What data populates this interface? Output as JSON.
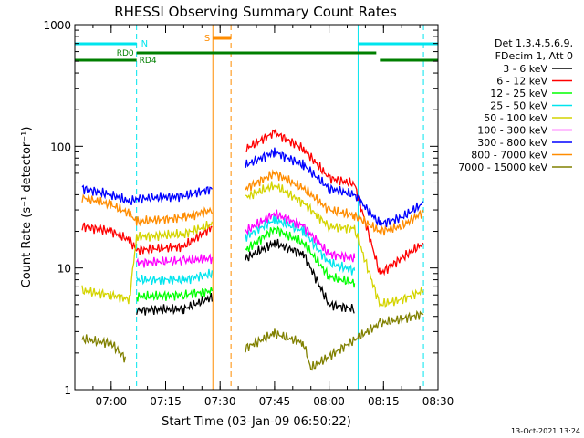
{
  "chart_data": {
    "type": "line",
    "title": "RHESSI Observing Summary Count Rates",
    "xlabel": "Start Time (03-Jan-09 06:50:22)",
    "ylabel": "Count Rate (s⁻¹ detector⁻¹)",
    "y_scale": "log",
    "ylim": [
      1,
      1000
    ],
    "xlim": [
      "06:50",
      "08:30"
    ],
    "x_ticks": [
      "07:00",
      "07:15",
      "07:30",
      "07:45",
      "08:00",
      "08:15",
      "08:30"
    ],
    "y_ticks": [
      "1",
      "10",
      "100",
      "1000"
    ],
    "legend_header": [
      "Det 1,3,4,5,6,9,",
      "FDecim 1, Att 0"
    ],
    "legend_position": "right",
    "timestamp": "13-Oct-2021 13:24",
    "annotations": {
      "night_label": "N",
      "saa_label": "S",
      "rd0_label": "RD0",
      "rd4_label": "RD4"
    },
    "bars": {
      "night": {
        "color": "#00e5ee",
        "intervals": [
          [
            "06:50",
            "07:07"
          ],
          [
            "08:08",
            "08:30"
          ]
        ]
      },
      "saa": {
        "color": "#ff8c00",
        "interval": [
          "07:28",
          "07:33"
        ]
      },
      "rd0": {
        "color": "#007f00",
        "interval": [
          "07:07",
          "08:13"
        ]
      },
      "rd4": {
        "color": "#007f00",
        "intervals": [
          [
            "06:50",
            "07:07"
          ],
          [
            "08:14",
            "08:30"
          ]
        ]
      }
    },
    "vlines": [
      {
        "time": "07:07",
        "color": "#00e5ee",
        "style": "dashed"
      },
      {
        "time": "07:28",
        "color": "#ff8c00",
        "style": "solid"
      },
      {
        "time": "07:33",
        "color": "#ff8c00",
        "style": "dashed"
      },
      {
        "time": "08:08",
        "color": "#00e5ee",
        "style": "solid"
      },
      {
        "time": "08:26",
        "color": "#00e5ee",
        "style": "dashed"
      }
    ],
    "gap": [
      "07:30",
      "07:37"
    ],
    "series": [
      {
        "name": "3 - 6 keV",
        "color": "#000000",
        "x": [
          "06:58",
          "07:05",
          "07:07",
          "07:20",
          "07:28",
          "07:37",
          "07:45",
          "07:53",
          "08:00",
          "08:07",
          "08:14",
          "08:20",
          "08:26"
        ],
        "y": [
          null,
          null,
          4.5,
          4.6,
          5.8,
          12,
          16,
          13,
          5,
          4.6,
          null,
          null,
          null
        ]
      },
      {
        "name": "6 - 12 keV",
        "color": "#ff0000",
        "x": [
          "06:52",
          "07:00",
          "07:05",
          "07:07",
          "07:20",
          "07:28",
          "07:37",
          "07:45",
          "07:53",
          "08:00",
          "08:07",
          "08:14",
          "08:20",
          "08:26"
        ],
        "y": [
          22,
          20,
          17,
          14,
          15,
          22,
          95,
          130,
          95,
          55,
          49,
          9,
          12,
          16
        ]
      },
      {
        "name": "12 - 25 keV",
        "color": "#00ff00",
        "x": [
          "07:07",
          "07:20",
          "07:28",
          "07:37",
          "07:45",
          "07:53",
          "08:00",
          "08:07"
        ],
        "y": [
          5.8,
          6,
          6.5,
          14,
          21,
          16,
          8.5,
          7.5
        ]
      },
      {
        "name": "25 - 50 keV",
        "color": "#00e5ee",
        "x": [
          "07:07",
          "07:20",
          "07:28",
          "07:37",
          "07:45",
          "07:53",
          "08:00",
          "08:07"
        ],
        "y": [
          8,
          8,
          9,
          18,
          25,
          20,
          11,
          9.5
        ]
      },
      {
        "name": "50 - 100 keV",
        "color": "#d4d400",
        "x": [
          "06:52",
          "07:00",
          "07:05",
          "07:07",
          "07:20",
          "07:28",
          "07:37",
          "07:45",
          "07:53",
          "08:00",
          "08:07",
          "08:14",
          "08:20",
          "08:26"
        ],
        "y": [
          6.5,
          6,
          5.5,
          18,
          19,
          23,
          38,
          48,
          34,
          22,
          21,
          5,
          5.5,
          6.5
        ]
      },
      {
        "name": "100 - 300 keV",
        "color": "#ff00ff",
        "x": [
          "07:07",
          "07:20",
          "07:28",
          "07:37",
          "07:45",
          "07:53",
          "08:00",
          "08:07"
        ],
        "y": [
          11,
          11.5,
          12,
          20,
          28,
          22,
          13,
          12
        ]
      },
      {
        "name": "300 - 800 keV",
        "color": "#0000ff",
        "x": [
          "06:52",
          "07:00",
          "07:05",
          "07:07",
          "07:20",
          "07:28",
          "07:37",
          "07:45",
          "07:53",
          "08:00",
          "08:07",
          "08:14",
          "08:20",
          "08:26"
        ],
        "y": [
          45,
          40,
          35,
          37,
          39,
          45,
          70,
          90,
          70,
          45,
          40,
          23,
          26,
          34
        ]
      },
      {
        "name": "800 - 7000 keV",
        "color": "#ff8c00",
        "x": [
          "06:52",
          "07:00",
          "07:05",
          "07:07",
          "07:20",
          "07:28",
          "07:37",
          "07:45",
          "07:53",
          "08:00",
          "08:07",
          "08:14",
          "08:20",
          "08:26"
        ],
        "y": [
          38,
          33,
          28,
          24,
          26,
          30,
          45,
          60,
          45,
          30,
          27,
          20,
          22,
          29
        ]
      },
      {
        "name": "7000 - 15000 keV",
        "color": "#808000",
        "x": [
          "06:52",
          "07:00",
          "07:04",
          "07:37",
          "07:45",
          "07:53",
          "07:55",
          "08:14",
          "08:20",
          "08:26"
        ],
        "y": [
          2.6,
          2.4,
          1.8,
          2.2,
          2.9,
          2.4,
          1.5,
          3.5,
          3.8,
          4.2
        ]
      }
    ]
  }
}
